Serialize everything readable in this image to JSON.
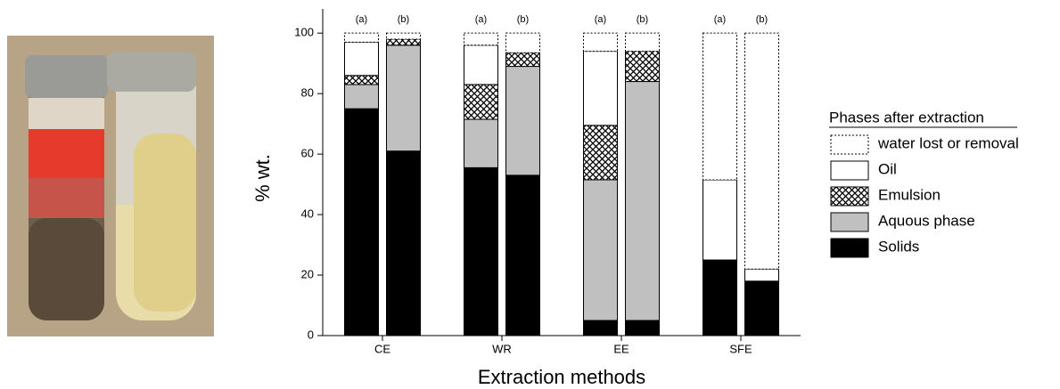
{
  "chart_data": {
    "type": "stacked_bar",
    "y_label": "% wt.",
    "x_label": "Extraction methods",
    "groups": [
      "CE",
      "WR",
      "EE",
      "SFE"
    ],
    "categories": [
      "(a)",
      "(b)",
      "(a)",
      "(b)",
      "(a)",
      "(b)",
      "(a)",
      "(b)"
    ],
    "legend_title": "Phases after extraction",
    "series": [
      {
        "name": "Solids",
        "color": "#000000",
        "style": "solid",
        "values": [
          75,
          61,
          55.5,
          53,
          5,
          5,
          25,
          18
        ]
      },
      {
        "name": "Aquous phase",
        "color": "#c0c0c0",
        "style": "solid",
        "values": [
          8,
          35,
          16,
          36,
          46.5,
          79,
          0,
          0
        ]
      },
      {
        "name": "Emulsion",
        "color": "#000000",
        "style": "hatch",
        "values": [
          3,
          2,
          11.5,
          4.5,
          18,
          10,
          0,
          0
        ]
      },
      {
        "name": "Oil",
        "color": "#ffffff",
        "style": "solid",
        "values": [
          11,
          0,
          13,
          0,
          24.5,
          0,
          26.5,
          4
        ]
      },
      {
        "name": "water lost or removal",
        "color": "#ffffff",
        "style": "dotted",
        "values": [
          3,
          2,
          4,
          6.5,
          6,
          6,
          48.5,
          78
        ]
      }
    ],
    "ylim": [
      0,
      108
    ],
    "yticks": [
      0,
      20,
      40,
      60,
      80,
      100
    ]
  }
}
